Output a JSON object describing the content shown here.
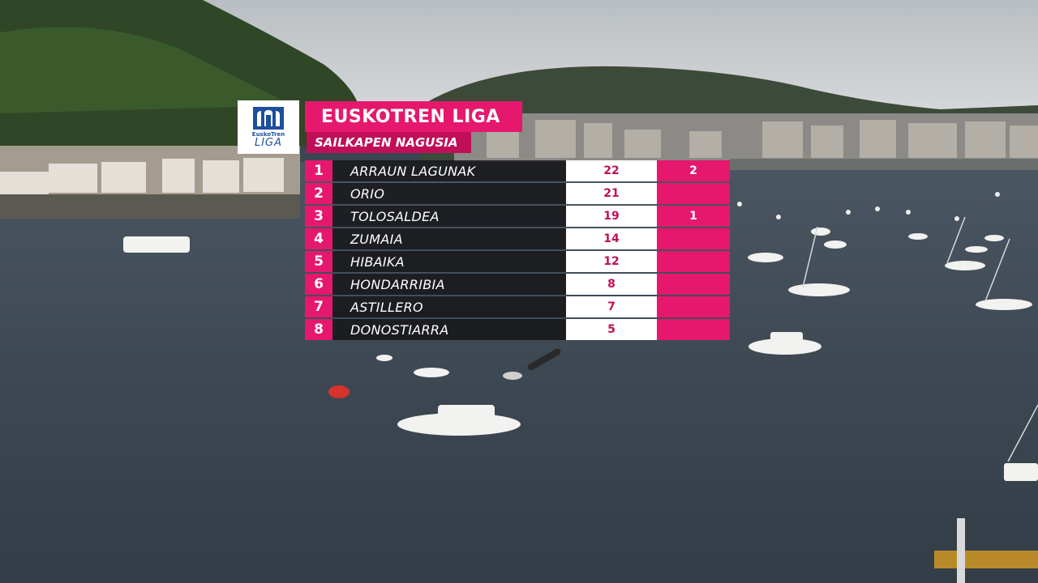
{
  "colors": {
    "accent": "#e5186d",
    "accent_dark": "#c10f57",
    "row_dark": "#141416",
    "points_bg": "#ffffff"
  },
  "overlay": {
    "logo": {
      "line1": "EuskoTren",
      "line2": "LIGA"
    },
    "title": "EUSKOTREN LIGA",
    "subtitle": "SAILKAPEN NAGUSIA",
    "rows": [
      {
        "position": "1",
        "team": "ARRAUN LAGUNAK",
        "points": "22",
        "wins": "2"
      },
      {
        "position": "2",
        "team": "ORIO",
        "points": "21",
        "wins": ""
      },
      {
        "position": "3",
        "team": "TOLOSALDEA",
        "points": "19",
        "wins": "1"
      },
      {
        "position": "4",
        "team": "ZUMAIA",
        "points": "14",
        "wins": ""
      },
      {
        "position": "5",
        "team": "HIBAIKA",
        "points": "12",
        "wins": ""
      },
      {
        "position": "6",
        "team": "HONDARRIBIA",
        "points": "8",
        "wins": ""
      },
      {
        "position": "7",
        "team": "ASTILLERO",
        "points": "7",
        "wins": ""
      },
      {
        "position": "8",
        "team": "DONOSTIARRA",
        "points": "5",
        "wins": ""
      }
    ]
  }
}
